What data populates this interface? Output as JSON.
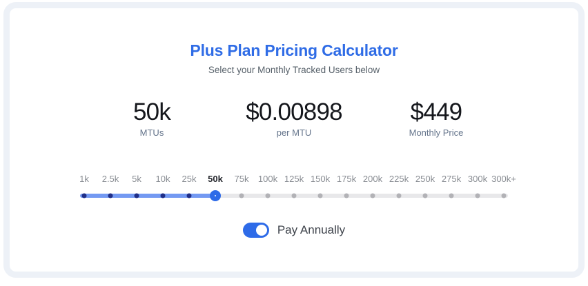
{
  "header": {
    "title": "Plus Plan Pricing Calculator",
    "subtitle": "Select your Monthly Tracked Users below"
  },
  "stats": [
    {
      "value": "50k",
      "label": "MTUs"
    },
    {
      "value": "$0.00898",
      "label": "per MTU"
    },
    {
      "value": "$449",
      "label": "Monthly Price"
    }
  ],
  "slider": {
    "ticks": [
      "1k",
      "2.5k",
      "5k",
      "10k",
      "25k",
      "50k",
      "75k",
      "100k",
      "125k",
      "150k",
      "175k",
      "200k",
      "225k",
      "250k",
      "275k",
      "300k",
      "300k+"
    ],
    "selected_index": 5,
    "selected_value": "50k"
  },
  "toggle": {
    "label": "Pay Annually",
    "state": "on"
  },
  "colors": {
    "accent_blue": "#2e6be8",
    "title_blue": "#2f6ce6",
    "track_fill": "#7399f2",
    "dot_filled": "#1f2e87",
    "track_empty": "#e8e8ea",
    "dot_empty": "#b2b2b6"
  }
}
